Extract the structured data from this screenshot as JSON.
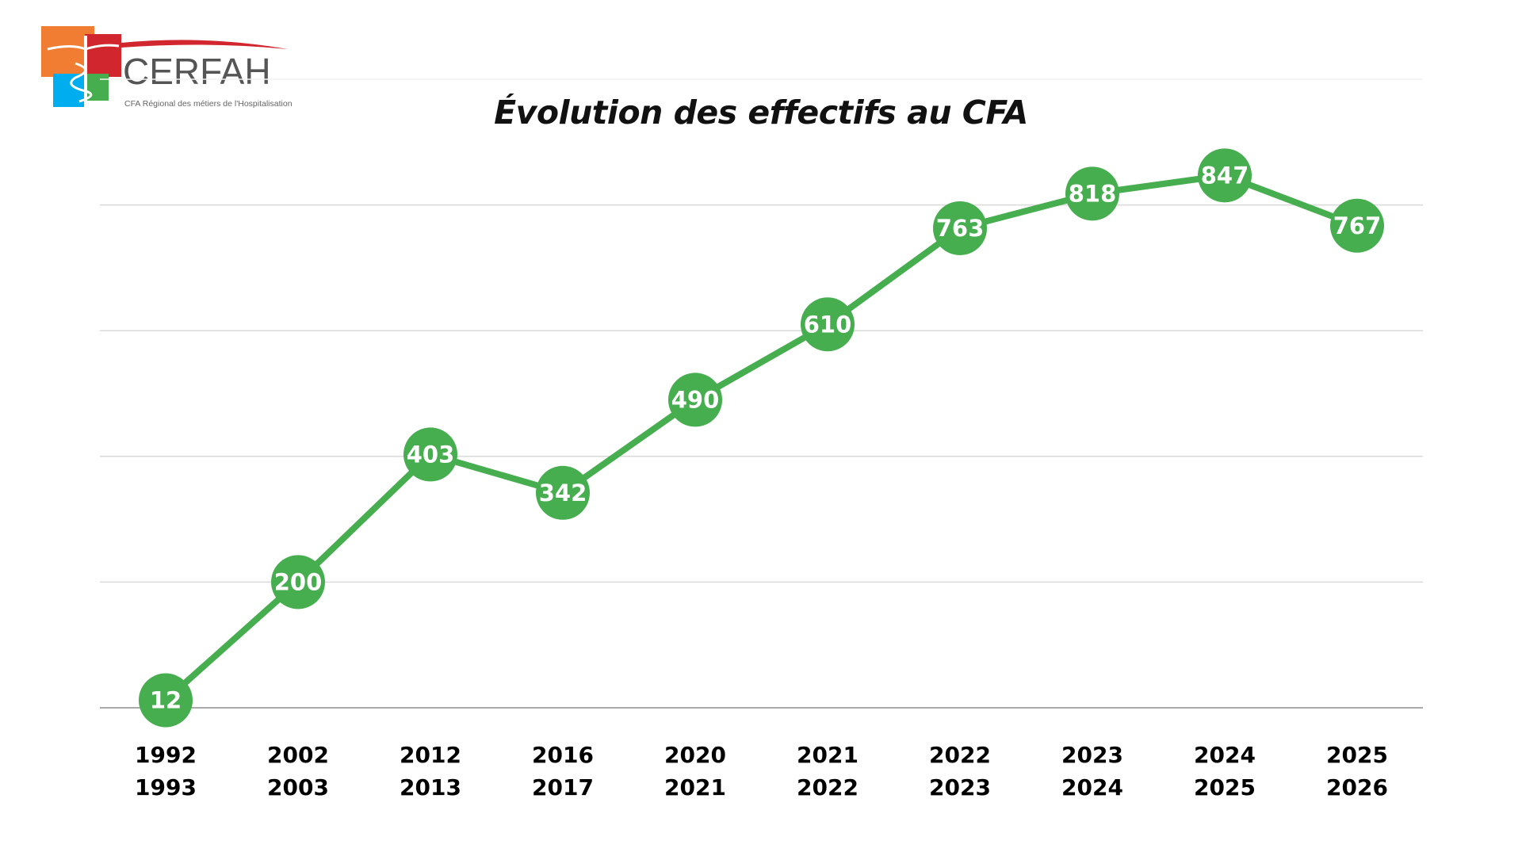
{
  "logo": {
    "name": "CERFAH",
    "tagline": "CFA Régional des métiers de l'Hospitalisation"
  },
  "chart_data": {
    "type": "line",
    "title": "Évolution des effectifs au CFA",
    "categories": [
      [
        "1992",
        "1993"
      ],
      [
        "2002",
        "2003"
      ],
      [
        "2012",
        "2013"
      ],
      [
        "2016",
        "2017"
      ],
      [
        "2020",
        "2021"
      ],
      [
        "2021",
        "2022"
      ],
      [
        "2022",
        "2023"
      ],
      [
        "2023",
        "2024"
      ],
      [
        "2024",
        "2025"
      ],
      [
        "2025",
        "2026"
      ]
    ],
    "values": [
      12,
      200,
      403,
      342,
      490,
      610,
      763,
      818,
      847,
      767
    ],
    "ylim": [
      0,
      1000
    ],
    "gridlines": [
      0,
      200,
      400,
      600,
      800,
      1000
    ],
    "grid": true,
    "y_tick_labels": false,
    "data_labels": true,
    "color": "#46ae4f"
  }
}
